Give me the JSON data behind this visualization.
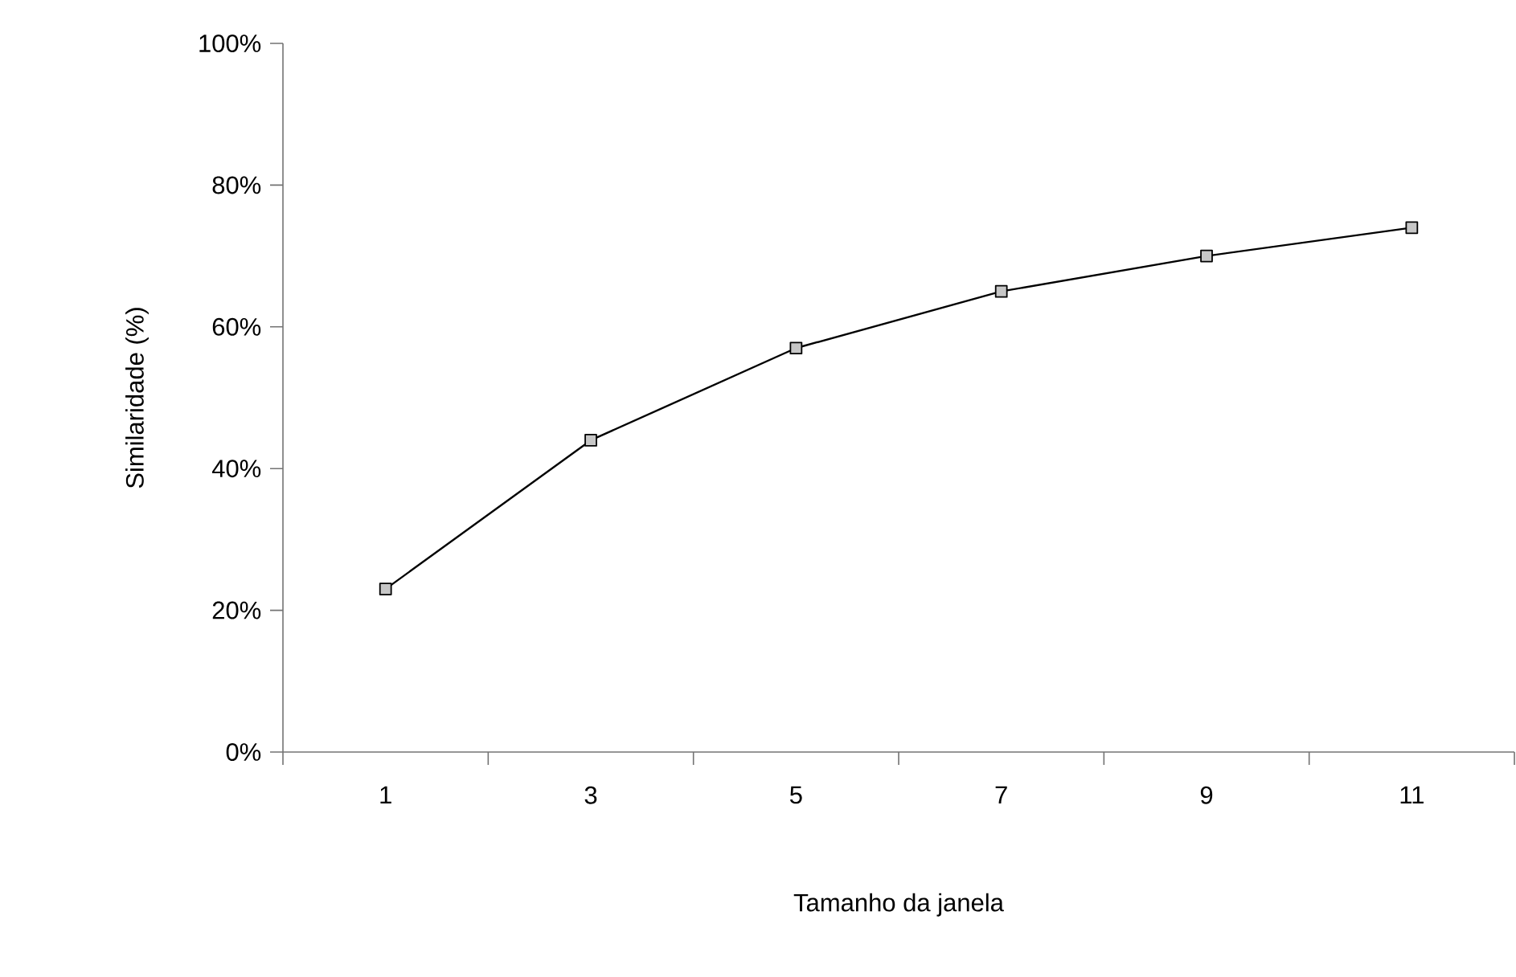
{
  "chart_data": {
    "type": "line",
    "xlabel": "Tamanho da janela",
    "ylabel": "Similaridade (%)",
    "categories": [
      "1",
      "3",
      "5",
      "7",
      "9",
      "11"
    ],
    "series": [
      {
        "color": "#000000",
        "values": [
          23,
          44,
          57,
          65,
          70,
          74
        ]
      }
    ],
    "ylim": [
      0,
      100
    ],
    "yticks": [
      {
        "value": 0,
        "label": "0%"
      },
      {
        "value": 20,
        "label": "20%"
      },
      {
        "value": 40,
        "label": "40%"
      },
      {
        "value": 60,
        "label": "60%"
      },
      {
        "value": 80,
        "label": "80%"
      },
      {
        "value": 100,
        "label": "100%"
      }
    ],
    "marker": "square",
    "line_style": "solid",
    "grid": false
  }
}
